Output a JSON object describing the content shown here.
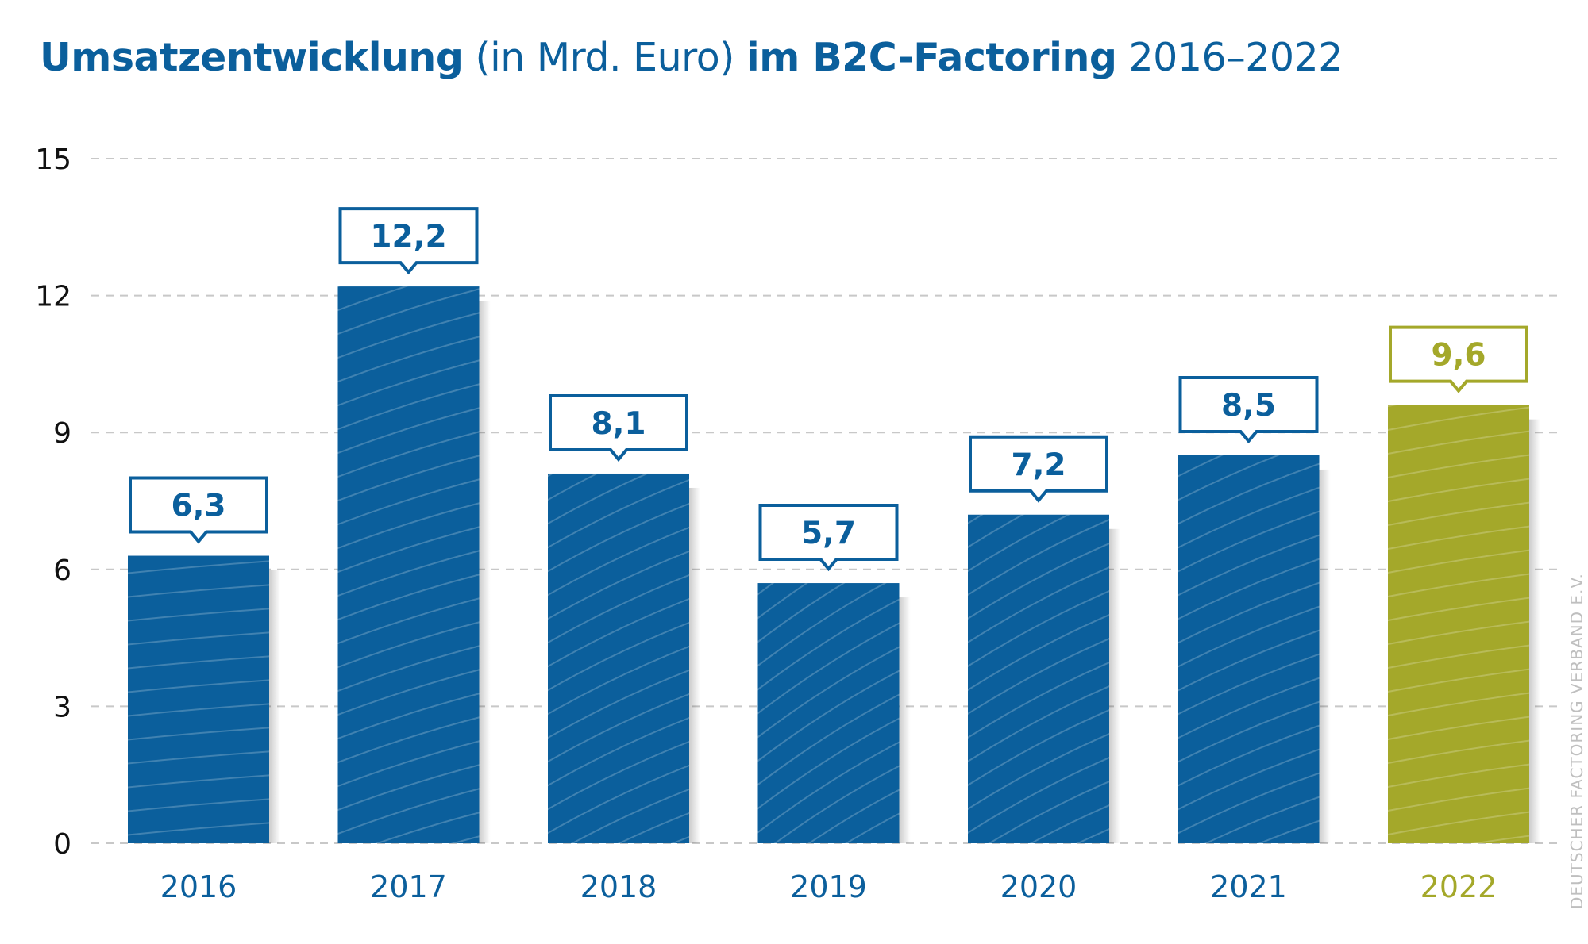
{
  "title": {
    "part1": "Umsatzentwicklung",
    "part2": "(in Mrd. Euro)",
    "part3": "im B2C-Factoring",
    "part4": "2016–2022"
  },
  "credit": "DEUTSCHER FACTORING VERBAND E.V.",
  "colors": {
    "primary": "#0b5f9c",
    "highlight": "#a4a82a",
    "grid": "#c8c8c8"
  },
  "chart_data": {
    "type": "bar",
    "categories": [
      "2016",
      "2017",
      "2018",
      "2019",
      "2020",
      "2021",
      "2022"
    ],
    "values": [
      6.3,
      12.2,
      8.1,
      5.7,
      7.2,
      8.5,
      9.6
    ],
    "value_labels": [
      "6,3",
      "12,2",
      "8,1",
      "5,7",
      "7,2",
      "8,5",
      "9,6"
    ],
    "highlighted_category": "2022",
    "ylim": [
      0,
      15
    ],
    "yticks": [
      0,
      3,
      6,
      9,
      12,
      15
    ],
    "grid": true,
    "xlabel": "",
    "ylabel": ""
  }
}
